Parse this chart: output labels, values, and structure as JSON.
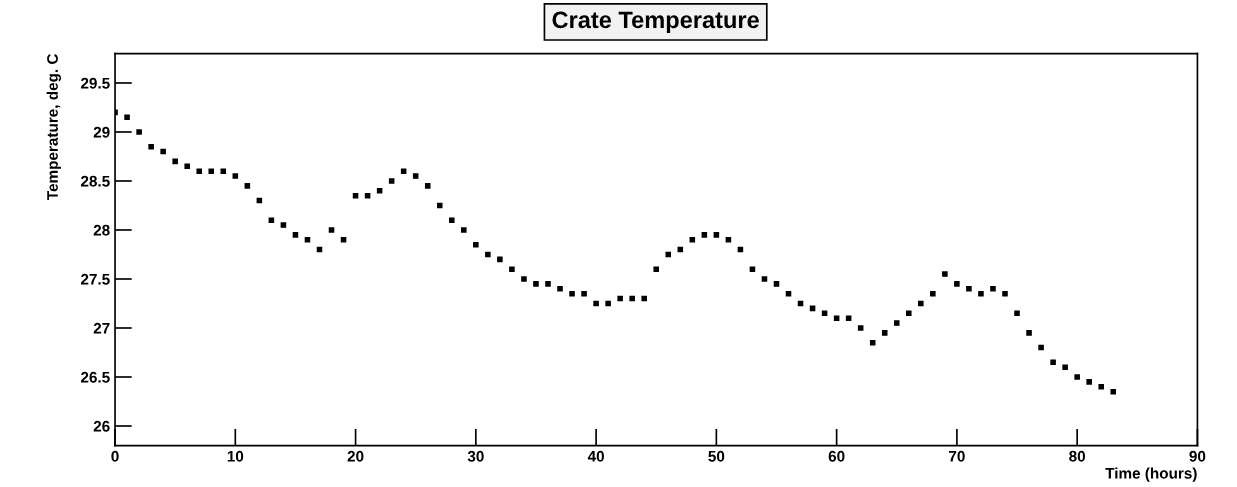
{
  "chart_data": {
    "type": "scatter",
    "title": "Crate Temperature",
    "xlabel": "Time (hours)",
    "ylabel": "Temperature, deg. C",
    "x": [
      0,
      1,
      2,
      3,
      4,
      5,
      6,
      7,
      8,
      9,
      10,
      11,
      12,
      13,
      14,
      15,
      16,
      17,
      18,
      19,
      20,
      21,
      22,
      23,
      24,
      25,
      26,
      27,
      28,
      29,
      30,
      31,
      32,
      33,
      34,
      35,
      36,
      37,
      38,
      39,
      40,
      41,
      42,
      43,
      44,
      45,
      46,
      47,
      48,
      49,
      50,
      51,
      52,
      53,
      54,
      55,
      56,
      57,
      58,
      59,
      60,
      61,
      62,
      63,
      64,
      65,
      66,
      67,
      68,
      69,
      70,
      71,
      72,
      73,
      74,
      75,
      76,
      77,
      78,
      79,
      80,
      81,
      82,
      83
    ],
    "series": [
      {
        "color": "#000000",
        "values": [
          29.2,
          29.15,
          29.0,
          28.85,
          28.8,
          28.7,
          28.65,
          28.6,
          28.6,
          28.6,
          28.55,
          28.45,
          28.3,
          28.1,
          28.05,
          27.95,
          27.9,
          27.8,
          28.0,
          27.9,
          28.35,
          28.35,
          28.4,
          28.5,
          28.6,
          28.55,
          28.45,
          28.25,
          28.1,
          28.0,
          27.85,
          27.75,
          27.7,
          27.6,
          27.5,
          27.45,
          27.45,
          27.4,
          27.35,
          27.35,
          27.25,
          27.25,
          27.3,
          27.3,
          27.3,
          27.6,
          27.75,
          27.8,
          27.9,
          27.95,
          27.95,
          27.9,
          27.8,
          27.6,
          27.5,
          27.45,
          27.35,
          27.25,
          27.2,
          27.15,
          27.1,
          27.1,
          27.0,
          26.85,
          26.95,
          27.05,
          27.15,
          27.25,
          27.35,
          27.55,
          27.45,
          27.4,
          27.35,
          27.4,
          27.35,
          27.15,
          26.95,
          26.8,
          26.65,
          26.6,
          26.5,
          26.45,
          26.4,
          26.35
        ]
      }
    ],
    "xlim": [
      0,
      90
    ],
    "xticks": [
      0,
      10,
      20,
      30,
      40,
      50,
      60,
      70,
      80,
      90
    ],
    "ylim": [
      25.8,
      29.8
    ],
    "yticks": [
      26,
      26.5,
      27,
      27.5,
      28,
      28.5,
      29,
      29.5
    ],
    "marker": "square",
    "grid": false,
    "legend": false
  }
}
